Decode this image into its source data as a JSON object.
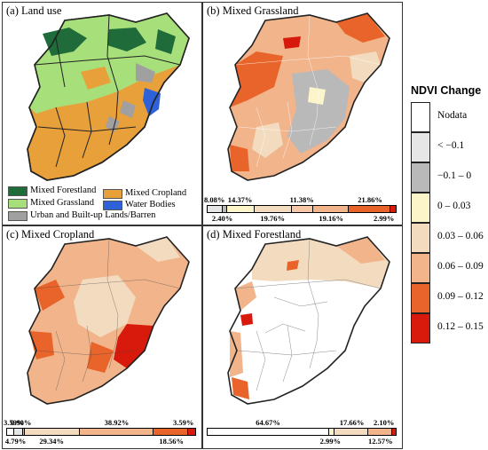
{
  "panels": {
    "a": {
      "title": "(a) Land use"
    },
    "b": {
      "title": "(b) Mixed Grassland"
    },
    "c": {
      "title": "(c) Mixed Cropland"
    },
    "d": {
      "title": "(d) Mixed Forestland"
    }
  },
  "landuse_legend": [
    {
      "label": "Mixed Forestland",
      "color": "#1f6b3a"
    },
    {
      "label": "Mixed Cropland",
      "color": "#e8a13a"
    },
    {
      "label": "Mixed Grassland",
      "color": "#a7e07a"
    },
    {
      "label": "Water Bodies",
      "color": "#2f62d8"
    },
    {
      "label": "Urban and Built-up Lands/Barren",
      "color": "#a0a0a0"
    }
  ],
  "ndvi_legend": {
    "title": "NDVI Change",
    "classes": [
      {
        "label": "Nodata",
        "color": "#ffffff"
      },
      {
        "label": "< −0.1",
        "color": "#e6e6e6"
      },
      {
        "label": "−0.1 – 0",
        "color": "#b9b9b9"
      },
      {
        "label": "0 – 0.03",
        "color": "#fbf5c9"
      },
      {
        "label": "0.03 – 0.06",
        "color": "#f3dbbf"
      },
      {
        "label": "0.06 – 0.09",
        "color": "#f1b48b"
      },
      {
        "label": "0.09 – 0.12",
        "color": "#e8642a"
      },
      {
        "label": "0.12 – 0.15",
        "color": "#d81a0c"
      }
    ]
  },
  "share_bars": {
    "b": [
      {
        "pct": "8.08%",
        "value": 8.08,
        "color": "#e6e6e6"
      },
      {
        "pct": "2.40%",
        "value": 2.4,
        "color": "#b9b9b9"
      },
      {
        "pct": "14.37%",
        "value": 14.37,
        "color": "#fbf5c9"
      },
      {
        "pct": "19.76%",
        "value": 19.76,
        "color": "#f3dbbf"
      },
      {
        "pct": "11.38%",
        "value": 11.38,
        "color": "#f7c8a8"
      },
      {
        "pct": "19.16%",
        "value": 19.16,
        "color": "#f1b48b"
      },
      {
        "pct": "21.86%",
        "value": 21.86,
        "color": "#e8642a"
      },
      {
        "pct": "2.99%",
        "value": 2.99,
        "color": "#d81a0c"
      }
    ],
    "c": [
      {
        "pct": "3.59%",
        "value": 3.59,
        "color": "#ffffff"
      },
      {
        "pct": "4.79%",
        "value": 4.79,
        "color": "#e6e6e6"
      },
      {
        "pct": "0.90%",
        "value": 0.9,
        "color": "#b9b9b9"
      },
      {
        "pct": "29.34%",
        "value": 29.34,
        "color": "#f3dbbf"
      },
      {
        "pct": "38.92%",
        "value": 38.92,
        "color": "#f1b48b"
      },
      {
        "pct": "18.56%",
        "value": 18.56,
        "color": "#e8642a"
      },
      {
        "pct": "3.59%",
        "value": 3.59,
        "color": "#d81a0c"
      }
    ],
    "d": [
      {
        "pct": "64.67%",
        "value": 64.67,
        "color": "#ffffff"
      },
      {
        "pct": "2.99%",
        "value": 2.99,
        "color": "#fbf5c9"
      },
      {
        "pct": "17.66%",
        "value": 17.66,
        "color": "#f3dbbf"
      },
      {
        "pct": "12.57%",
        "value": 12.57,
        "color": "#f1b48b"
      },
      {
        "pct": "2.10%",
        "value": 2.1,
        "color": "#d81a0c"
      }
    ]
  }
}
